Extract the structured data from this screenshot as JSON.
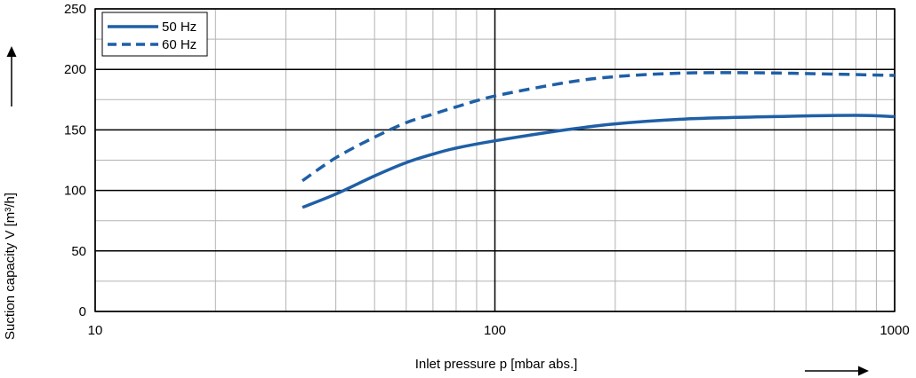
{
  "chart_data": {
    "type": "line",
    "xlabel": "Inlet pressure p [mbar abs.]",
    "ylabel": "Suction capacity V [m³/h]",
    "x_scale": "log",
    "xlim": [
      10,
      1000
    ],
    "ylim": [
      0,
      250
    ],
    "x_ticks": [
      10,
      100,
      1000
    ],
    "x_tick_labels": [
      "10",
      "100",
      "1000"
    ],
    "y_ticks": [
      0,
      50,
      100,
      150,
      200,
      250
    ],
    "y_tick_labels": [
      "0",
      "50",
      "100",
      "150",
      "200",
      "250"
    ],
    "grid": true,
    "legend_position": "top-left",
    "series": [
      {
        "name": "50 Hz",
        "style": "solid",
        "color": "#1f5fa6",
        "x": [
          33,
          40,
          50,
          60,
          70,
          80,
          100,
          150,
          200,
          300,
          500,
          800,
          1000
        ],
        "y": [
          86,
          97,
          112,
          123,
          130,
          135,
          141,
          150,
          155,
          159,
          161,
          162,
          161
        ]
      },
      {
        "name": "60 Hz",
        "style": "dashed",
        "color": "#1f5fa6",
        "x": [
          33,
          40,
          50,
          60,
          70,
          80,
          100,
          150,
          200,
          300,
          500,
          1000
        ],
        "y": [
          108,
          127,
          144,
          156,
          163,
          169,
          178,
          189,
          194,
          197,
          197,
          195
        ]
      }
    ]
  }
}
